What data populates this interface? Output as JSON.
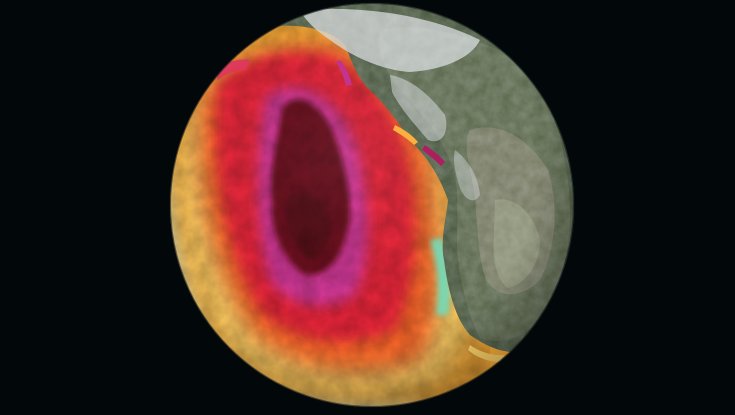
{
  "scene": {
    "background_color": "#02070a",
    "subject": "globe",
    "projection": "orthographic",
    "colors": {
      "hottest": "#6e0b1f",
      "very_hot": "#b01a5e",
      "magenta": "#d7399b",
      "hot": "#f0283a",
      "warm": "#ff6a2a",
      "mild": "#ffb03a",
      "slight": "#ffd46a",
      "neutral": "#cfe4c8",
      "cool": "#79d9b4",
      "land_dark": "#3c4a36",
      "land_mid": "#5a6a4e",
      "land_light": "#8d9277",
      "snow": "#d9dde0"
    }
  }
}
